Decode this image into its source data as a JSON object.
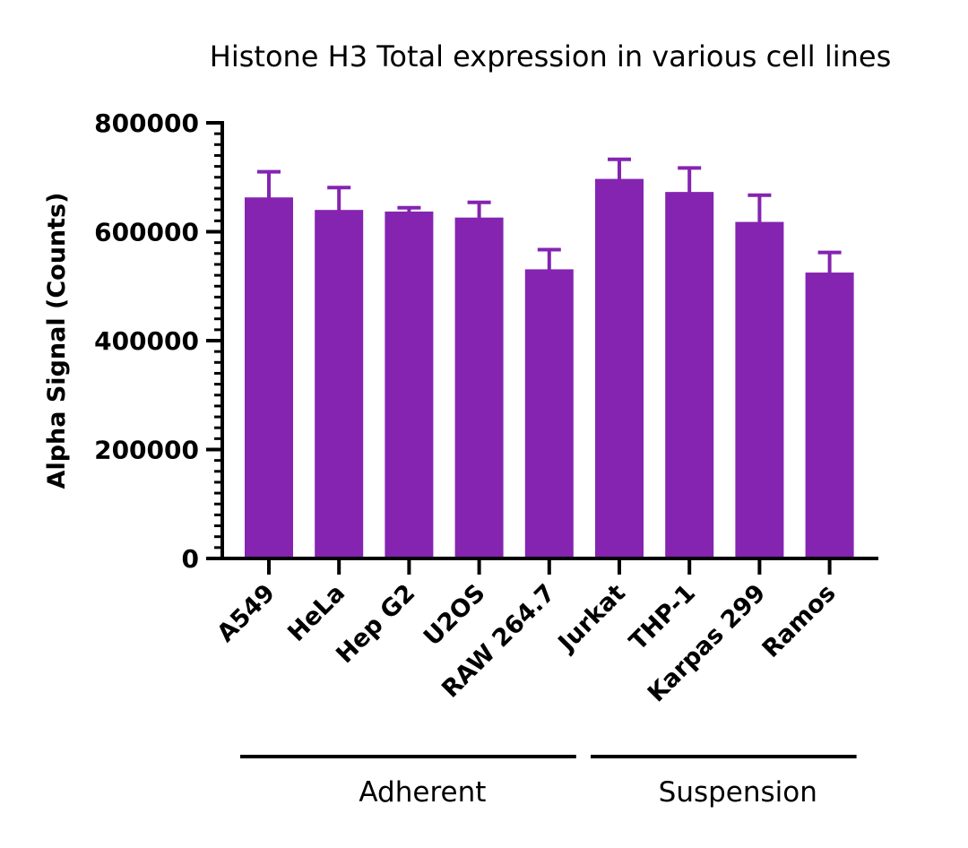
{
  "chart_data": {
    "type": "bar",
    "title": "Histone H3 Total expression in various cell lines",
    "xlabel": "",
    "ylabel": "Alpha Signal (Counts)",
    "ylim": [
      0,
      800000
    ],
    "yticks": [
      0,
      200000,
      400000,
      600000,
      800000
    ],
    "ytick_labels": [
      "0",
      "200000",
      "400000",
      "600000",
      "800000"
    ],
    "categories": [
      "A549",
      "HeLa",
      "Hep G2",
      "U2OS",
      "RAW 264.7",
      "Jurkat",
      "THP-1",
      "Karpas 299",
      "Ramos"
    ],
    "series": [
      {
        "values": [
          663000,
          640000,
          637000,
          626000,
          531000,
          697000,
          673000,
          618000,
          525000
        ],
        "error_upper": [
          47000,
          41000,
          7000,
          28000,
          36000,
          36000,
          44000,
          49000,
          37000
        ]
      }
    ],
    "groups": [
      {
        "label": "Adherent",
        "categories": [
          "A549",
          "HeLa",
          "Hep G2",
          "U2OS",
          "RAW 264.7"
        ]
      },
      {
        "label": "Suspension",
        "categories": [
          "Jurkat",
          "THP-1",
          "Karpas 299",
          "Ramos"
        ]
      }
    ],
    "colors": {
      "bar": "#8424b0",
      "error_bar": "#8424b0",
      "axis": "#000000"
    },
    "grid": false,
    "legend": "none"
  }
}
